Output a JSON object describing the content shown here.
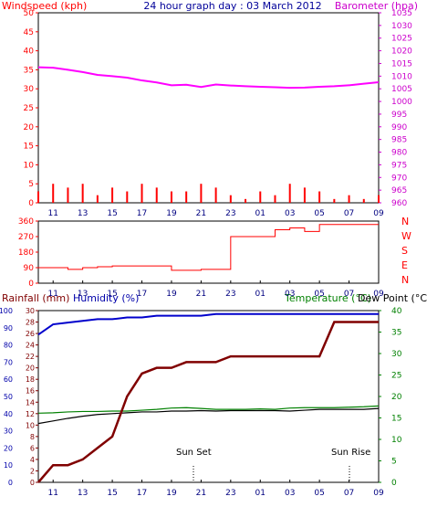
{
  "header": {
    "left_label": "Windspeed (kph)",
    "center_title": "24 hour graph day : 03 March 2012",
    "right_label": "Barometer (hpa)"
  },
  "bottom_header": {
    "rainfall_label": "Rainfall (mm)",
    "humidity_label": "Humidity (%)",
    "temperature_label": "Temperature (°C)",
    "dewpoint_label": "Dew Point (°C)"
  },
  "annotations": {
    "sunset": "Sun Set",
    "sunrise": "Sun Rise"
  },
  "x_ticks": [
    "11",
    "13",
    "15",
    "17",
    "19",
    "21",
    "23",
    "01",
    "03",
    "05",
    "07",
    "09"
  ],
  "colors": {
    "wind": "#ff0000",
    "gust_low": "#0000ff",
    "barometer": "#ff00ff",
    "direction": "#ff0000",
    "humidity": "#0000cc",
    "temperature": "#008000",
    "dewpoint": "#000000",
    "rainfall": "#800000",
    "axis_red": "#ff0000",
    "axis_mag": "#cc00cc",
    "axis_blue": "#0000aa",
    "axis_green": "#008000"
  },
  "chart_data": [
    {
      "type": "line",
      "title": "24 hour graph day : 03 March 2012",
      "panel": "wind_barometer",
      "x": [
        "10",
        "11",
        "12",
        "13",
        "14",
        "15",
        "16",
        "17",
        "18",
        "19",
        "20",
        "21",
        "22",
        "23",
        "00",
        "01",
        "02",
        "03",
        "04",
        "05",
        "06",
        "07",
        "08",
        "09"
      ],
      "left_axis": {
        "label": "Windspeed (kph)",
        "ylim": [
          0,
          50
        ],
        "ticks": [
          0,
          5,
          10,
          15,
          20,
          25,
          30,
          35,
          40,
          45,
          50
        ]
      },
      "right_axis": {
        "label": "Barometer (hpa)",
        "ylim": [
          960,
          1035
        ],
        "ticks": [
          960,
          965,
          970,
          975,
          980,
          985,
          990,
          995,
          1000,
          1005,
          1010,
          1015,
          1020,
          1025,
          1030,
          1035
        ]
      },
      "series": [
        {
          "name": "Barometer (hpa)",
          "axis": "right",
          "values": [
            1013.5,
            1013.3,
            1012.5,
            1011.6,
            1010.5,
            1010.0,
            1009.4,
            1008.3,
            1007.5,
            1006.4,
            1006.6,
            1005.7,
            1006.7,
            1006.3,
            1006.0,
            1005.8,
            1005.6,
            1005.4,
            1005.5,
            1005.8,
            1006.0,
            1006.4,
            1007.0,
            1007.6
          ]
        },
        {
          "name": "Windspeed (kph)",
          "axis": "left",
          "values": [
            3,
            5,
            4,
            5,
            2,
            4,
            3,
            5,
            4,
            3,
            3,
            5,
            4,
            2,
            1,
            3,
            2,
            5,
            4,
            3,
            1,
            2,
            1,
            2
          ]
        }
      ]
    },
    {
      "type": "line",
      "panel": "wind_direction",
      "x": [
        "10",
        "11",
        "12",
        "13",
        "14",
        "15",
        "16",
        "17",
        "18",
        "19",
        "20",
        "21",
        "22",
        "23",
        "00",
        "01",
        "02",
        "03",
        "04",
        "05",
        "06",
        "07",
        "08",
        "09"
      ],
      "left_axis": {
        "ylim": [
          0,
          360
        ],
        "ticks": [
          0,
          90,
          180,
          270,
          360
        ]
      },
      "right_axis": {
        "ticks": [
          "N",
          "E",
          "S",
          "W",
          "N"
        ]
      },
      "series": [
        {
          "name": "Wind direction",
          "values": [
            90,
            90,
            80,
            90,
            95,
            100,
            100,
            100,
            100,
            75,
            75,
            80,
            80,
            270,
            270,
            270,
            310,
            320,
            300,
            340,
            340,
            340,
            340,
            340
          ]
        }
      ]
    },
    {
      "type": "line",
      "panel": "rain_humidity_temperature",
      "x": [
        "10",
        "11",
        "12",
        "13",
        "14",
        "15",
        "16",
        "17",
        "18",
        "19",
        "20",
        "21",
        "22",
        "23",
        "00",
        "01",
        "02",
        "03",
        "04",
        "05",
        "06",
        "07",
        "08",
        "09"
      ],
      "axes": {
        "rainfall": {
          "ticks": [
            0,
            2,
            4,
            6,
            8,
            10,
            12,
            14,
            16,
            18,
            20,
            22,
            24,
            26,
            28,
            30
          ]
        },
        "humidity": {
          "ticks": [
            0,
            10,
            20,
            30,
            40,
            50,
            60,
            70,
            80,
            90,
            100
          ]
        },
        "temperature": {
          "ticks": [
            0,
            5,
            10,
            15,
            20,
            25,
            30,
            35,
            40
          ]
        }
      },
      "series": [
        {
          "name": "Humidity (%)",
          "values": [
            86,
            92,
            93,
            94,
            95,
            95,
            96,
            96,
            97,
            97,
            97,
            97,
            98,
            98,
            98,
            98,
            98,
            98,
            98,
            98,
            98,
            98,
            98,
            98
          ]
        },
        {
          "name": "Temperature (°C)",
          "values": [
            16.1,
            16.2,
            16.4,
            16.5,
            16.5,
            16.6,
            16.6,
            16.8,
            17.0,
            17.3,
            17.4,
            17.2,
            17.0,
            17.0,
            17.0,
            17.1,
            17.0,
            17.3,
            17.4,
            17.4,
            17.4,
            17.5,
            17.6,
            17.8
          ]
        },
        {
          "name": "Dew Point (°C)",
          "values": [
            13.7,
            14.3,
            14.9,
            15.4,
            15.8,
            16.0,
            16.2,
            16.4,
            16.4,
            16.6,
            16.6,
            16.7,
            16.6,
            16.7,
            16.7,
            16.7,
            16.7,
            16.6,
            16.8,
            17.0,
            17.0,
            17.0,
            17.0,
            17.2
          ]
        },
        {
          "name": "Rainfall (mm)",
          "values": [
            0,
            3,
            3,
            4,
            6,
            8,
            15,
            19,
            20,
            20,
            21,
            21,
            21,
            22,
            22,
            22,
            22,
            22,
            22,
            22,
            28,
            28,
            28,
            28
          ]
        }
      ]
    }
  ]
}
